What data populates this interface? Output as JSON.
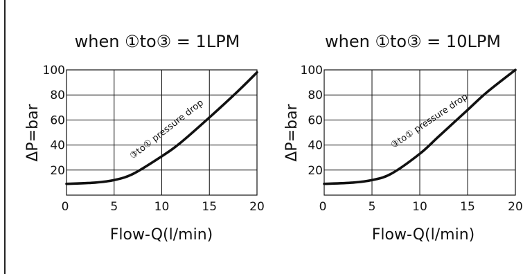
{
  "chart_data": [
    {
      "type": "line",
      "title": "when ①to③ = 1LPM",
      "xlabel": "Flow-Q(l/min)",
      "ylabel": "ΔP=bar",
      "x_ticks": [
        "0",
        "5",
        "10",
        "15",
        "20"
      ],
      "y_ticks": [
        "20",
        "40",
        "60",
        "80",
        "100"
      ],
      "xlim": [
        0,
        20
      ],
      "ylim": [
        0,
        100
      ],
      "grid": true,
      "annotation": "③to① pressure drop",
      "series": [
        {
          "x": [
            0,
            3,
            5,
            7,
            10,
            12,
            15,
            18,
            20
          ],
          "y": [
            9,
            10,
            12,
            17,
            31,
            42,
            62,
            83,
            98
          ]
        }
      ]
    },
    {
      "type": "line",
      "title": "when ①to③ = 10LPM",
      "xlabel": "Flow-Q(l/min)",
      "ylabel": "ΔP=bar",
      "x_ticks": [
        "0",
        "5",
        "10",
        "15",
        "20"
      ],
      "y_ticks": [
        "20",
        "40",
        "60",
        "80",
        "100"
      ],
      "xlim": [
        0,
        20
      ],
      "ylim": [
        0,
        100
      ],
      "grid": true,
      "annotation": "③to① pressure drop",
      "series": [
        {
          "x": [
            0,
            3,
            5,
            7,
            10,
            12,
            15,
            17,
            20
          ],
          "y": [
            9,
            10,
            12,
            17,
            33,
            47,
            68,
            82,
            100
          ]
        }
      ]
    }
  ]
}
